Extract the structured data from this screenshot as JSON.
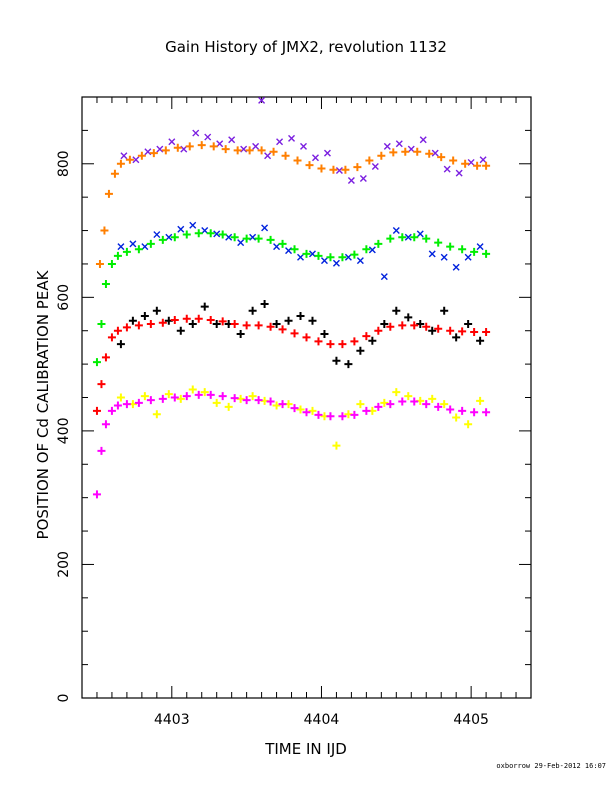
{
  "chart_data": {
    "type": "scatter",
    "title": "Gain History of JMX2, revolution 1132",
    "xlabel": "TIME IN IJD",
    "ylabel": "POSITION OF Cd CALIBRATION PEAK",
    "xlim": [
      4402.4,
      4405.4
    ],
    "ylim": [
      0,
      900
    ],
    "xticks": [
      4403,
      4404,
      4405
    ],
    "xtick_labels": [
      "4403",
      "4404",
      "4405"
    ],
    "yticks": [
      0,
      200,
      400,
      600,
      800
    ],
    "ytick_labels": [
      "0",
      "200",
      "400",
      "600",
      "800"
    ],
    "grid": false,
    "legend": "none",
    "series": [
      {
        "marker": "x",
        "color": "#7b1fe0",
        "x": [
          4402.68,
          4402.76,
          4402.84,
          4402.92,
          4403.0,
          4403.08,
          4403.16,
          4403.24,
          4403.32,
          4403.4,
          4403.48,
          4403.56,
          4403.6,
          4403.64,
          4403.72,
          4403.8,
          4403.88,
          4403.96,
          4404.04,
          4404.12,
          4404.2,
          4404.28,
          4404.36,
          4404.44,
          4404.52,
          4404.6,
          4404.68,
          4404.76,
          4404.84,
          4404.92,
          4405.0,
          4405.08
        ],
        "y": [
          812,
          806,
          818,
          822,
          833,
          822,
          846,
          840,
          830,
          836,
          822,
          826,
          895,
          812,
          833,
          838,
          826,
          809,
          816,
          790,
          775,
          778,
          796,
          826,
          830,
          822,
          836,
          816,
          792,
          786,
          802,
          806
        ]
      },
      {
        "marker": "cross",
        "color": "#ff7f00",
        "x": [
          4402.52,
          4402.55,
          4402.58,
          4402.62,
          4402.66,
          4402.72,
          4402.8,
          4402.88,
          4402.96,
          4403.04,
          4403.12,
          4403.2,
          4403.28,
          4403.36,
          4403.44,
          4403.52,
          4403.6,
          4403.68,
          4403.76,
          4403.84,
          4403.92,
          4404.0,
          4404.08,
          4404.16,
          4404.24,
          4404.32,
          4404.4,
          4404.48,
          4404.56,
          4404.64,
          4404.72,
          4404.8,
          4404.88,
          4404.96,
          4405.04,
          4405.1
        ],
        "y": [
          650,
          700,
          755,
          785,
          800,
          806,
          812,
          816,
          820,
          824,
          826,
          828,
          826,
          822,
          820,
          820,
          820,
          818,
          812,
          805,
          798,
          793,
          791,
          791,
          795,
          805,
          812,
          817,
          818,
          818,
          815,
          810,
          805,
          800,
          797,
          797
        ]
      },
      {
        "marker": "x",
        "color": "#0022dd",
        "x": [
          4402.66,
          4402.74,
          4402.82,
          4402.9,
          4402.98,
          4403.06,
          4403.14,
          4403.22,
          4403.3,
          4403.38,
          4403.46,
          4403.54,
          4403.62,
          4403.7,
          4403.78,
          4403.86,
          4403.94,
          4404.02,
          4404.1,
          4404.18,
          4404.26,
          4404.34,
          4404.42,
          4404.5,
          4404.58,
          4404.66,
          4404.74,
          4404.82,
          4404.9,
          4404.98,
          4405.06
        ],
        "y": [
          676,
          680,
          676,
          694,
          690,
          702,
          708,
          700,
          695,
          690,
          682,
          690,
          704,
          676,
          670,
          660,
          665,
          655,
          651,
          660,
          655,
          671,
          631,
          700,
          690,
          695,
          665,
          660,
          645,
          660,
          676
        ]
      },
      {
        "marker": "cross",
        "color": "#00ee00",
        "x": [
          4402.5,
          4402.53,
          4402.56,
          4402.6,
          4402.64,
          4402.7,
          4402.78,
          4402.86,
          4402.94,
          4403.02,
          4403.1,
          4403.18,
          4403.26,
          4403.34,
          4403.42,
          4403.5,
          4403.58,
          4403.66,
          4403.74,
          4403.82,
          4403.9,
          4403.98,
          4404.06,
          4404.14,
          4404.22,
          4404.3,
          4404.38,
          4404.46,
          4404.54,
          4404.62,
          4404.7,
          4404.78,
          4404.86,
          4404.94,
          4405.02,
          4405.1
        ],
        "y": [
          503,
          560,
          620,
          650,
          662,
          668,
          672,
          680,
          686,
          690,
          694,
          696,
          696,
          694,
          690,
          688,
          688,
          686,
          680,
          672,
          665,
          662,
          660,
          660,
          664,
          672,
          680,
          688,
          690,
          690,
          688,
          682,
          676,
          672,
          668,
          665
        ]
      },
      {
        "marker": "cross",
        "color": "#000000",
        "x": [
          4402.66,
          4402.74,
          4402.82,
          4402.9,
          4402.98,
          4403.06,
          4403.14,
          4403.22,
          4403.3,
          4403.38,
          4403.46,
          4403.54,
          4403.62,
          4403.7,
          4403.78,
          4403.86,
          4403.94,
          4404.02,
          4404.1,
          4404.18,
          4404.26,
          4404.34,
          4404.42,
          4404.5,
          4404.58,
          4404.66,
          4404.74,
          4404.82,
          4404.9,
          4404.98,
          4405.06
        ],
        "y": [
          530,
          565,
          572,
          580,
          565,
          550,
          560,
          586,
          560,
          560,
          545,
          580,
          590,
          560,
          565,
          572,
          565,
          545,
          505,
          500,
          520,
          535,
          560,
          580,
          570,
          560,
          550,
          580,
          540,
          560,
          535
        ]
      },
      {
        "marker": "cross",
        "color": "#ff0000",
        "x": [
          4402.5,
          4402.53,
          4402.56,
          4402.6,
          4402.64,
          4402.7,
          4402.78,
          4402.86,
          4402.94,
          4403.02,
          4403.1,
          4403.18,
          4403.26,
          4403.34,
          4403.42,
          4403.5,
          4403.58,
          4403.66,
          4403.74,
          4403.82,
          4403.9,
          4403.98,
          4404.06,
          4404.14,
          4404.22,
          4404.3,
          4404.38,
          4404.46,
          4404.54,
          4404.62,
          4404.7,
          4404.78,
          4404.86,
          4404.94,
          4405.02,
          4405.1
        ],
        "y": [
          430,
          470,
          510,
          540,
          550,
          555,
          558,
          560,
          562,
          566,
          568,
          568,
          566,
          564,
          560,
          558,
          558,
          556,
          552,
          546,
          540,
          534,
          530,
          530,
          534,
          542,
          550,
          556,
          558,
          558,
          556,
          553,
          550,
          549,
          548,
          548
        ]
      },
      {
        "marker": "cross",
        "color": "#ffff00",
        "x": [
          4402.66,
          4402.74,
          4402.82,
          4402.9,
          4402.98,
          4403.06,
          4403.14,
          4403.22,
          4403.3,
          4403.38,
          4403.46,
          4403.54,
          4403.62,
          4403.7,
          4403.78,
          4403.86,
          4403.94,
          4404.02,
          4404.1,
          4404.18,
          4404.26,
          4404.34,
          4404.42,
          4404.5,
          4404.58,
          4404.66,
          4404.74,
          4404.82,
          4404.9,
          4404.98,
          4405.06
        ],
        "y": [
          450,
          440,
          452,
          425,
          455,
          448,
          462,
          458,
          442,
          436,
          448,
          452,
          445,
          438,
          440,
          432,
          430,
          422,
          378,
          425,
          440,
          430,
          442,
          458,
          452,
          445,
          448,
          440,
          420,
          410,
          445
        ]
      },
      {
        "marker": "cross",
        "color": "#ff00ff",
        "x": [
          4402.5,
          4402.53,
          4402.56,
          4402.6,
          4402.64,
          4402.7,
          4402.78,
          4402.86,
          4402.94,
          4403.02,
          4403.1,
          4403.18,
          4403.26,
          4403.34,
          4403.42,
          4403.5,
          4403.58,
          4403.66,
          4403.74,
          4403.82,
          4403.9,
          4403.98,
          4404.06,
          4404.14,
          4404.22,
          4404.3,
          4404.38,
          4404.46,
          4404.54,
          4404.62,
          4404.7,
          4404.78,
          4404.86,
          4404.94,
          4405.02,
          4405.1
        ],
        "y": [
          305,
          370,
          410,
          430,
          438,
          440,
          442,
          446,
          448,
          450,
          452,
          454,
          454,
          452,
          449,
          446,
          446,
          444,
          440,
          434,
          428,
          424,
          422,
          422,
          424,
          430,
          436,
          440,
          444,
          444,
          440,
          436,
          432,
          430,
          428,
          428
        ]
      }
    ]
  },
  "footer": "oxborrow  29-Feb-2012 16:07"
}
